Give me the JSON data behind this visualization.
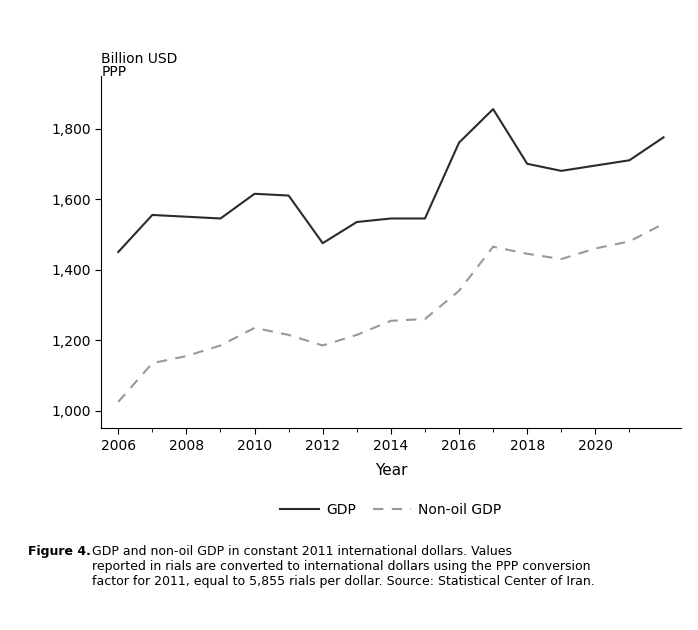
{
  "years": [
    2006,
    2007,
    2008,
    2009,
    2010,
    2011,
    2012,
    2013,
    2014,
    2015,
    2016,
    2017,
    2018,
    2019,
    2020,
    2021,
    2022
  ],
  "gdp": [
    1450,
    1555,
    1550,
    1545,
    1615,
    1610,
    1475,
    1535,
    1545,
    1545,
    1760,
    1855,
    1700,
    1680,
    1695,
    1710,
    1775
  ],
  "non_oil_gdp": [
    1025,
    1135,
    1155,
    1185,
    1235,
    1215,
    1185,
    1215,
    1255,
    1260,
    1340,
    1465,
    1445,
    1430,
    1460,
    1480,
    1530
  ],
  "ylim": [
    950,
    1950
  ],
  "yticks": [
    1000,
    1200,
    1400,
    1600,
    1800
  ],
  "ytick_labels": [
    "1,000",
    "1,200",
    "1,400",
    "1,600",
    "1,800"
  ],
  "xticks": [
    2006,
    2008,
    2010,
    2012,
    2014,
    2016,
    2018,
    2020
  ],
  "minor_xticks": [
    2007,
    2009,
    2011,
    2013,
    2015,
    2017,
    2019,
    2021
  ],
  "xlabel": "Year",
  "ylabel_line1": "Billion USD",
  "ylabel_line2": "PPP",
  "gdp_color": "#2a2a2a",
  "non_oil_gdp_color": "#999999",
  "legend_gdp": "GDP",
  "legend_non_oil": "Non-oil GDP",
  "caption_bold": "Figure 4.",
  "caption_normal": "  GDP and non-oil GDP in constant 2011 international dollars. Values reported in rials are converted to international dollars using the PPP conversion factor for 2011, equal to 5,855 rials per dollar. Source: Statistical Center of Iran.",
  "background_color": "#ffffff",
  "linewidth": 1.5
}
